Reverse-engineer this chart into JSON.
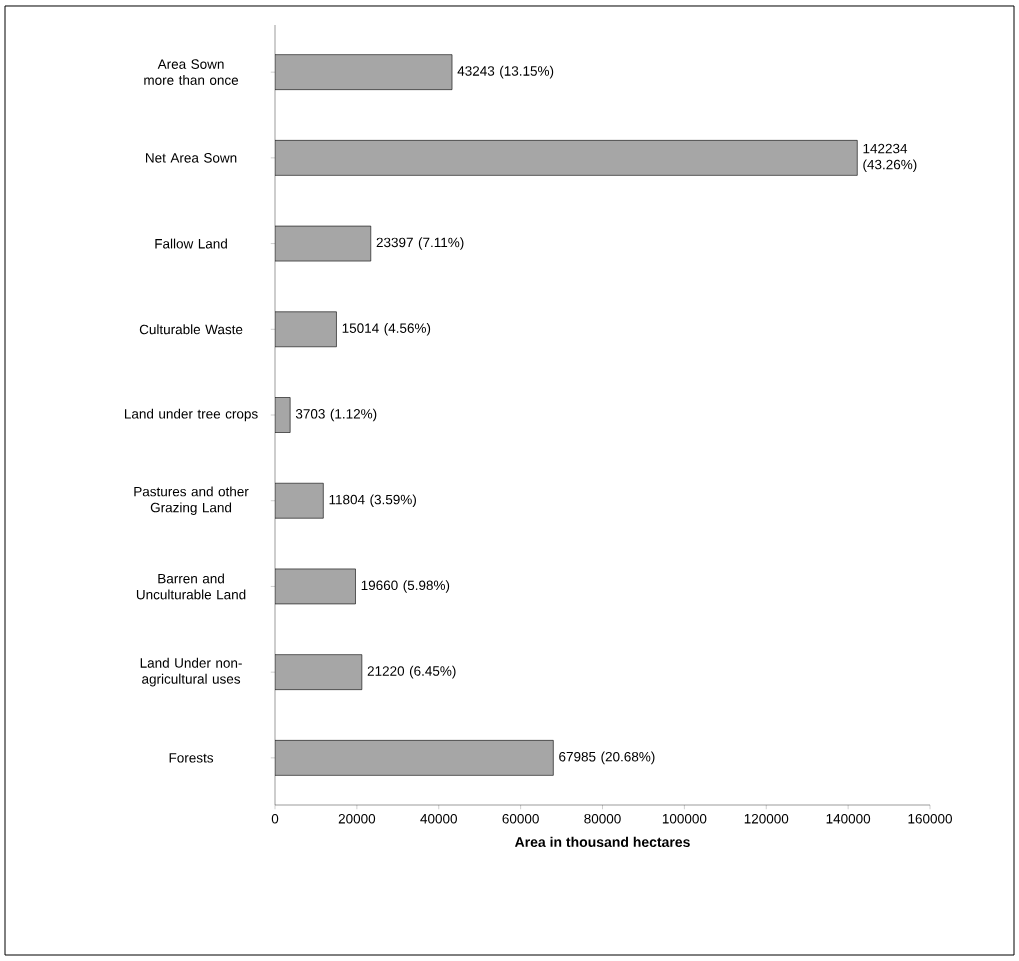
{
  "chart_data": {
    "type": "bar",
    "orientation": "horizontal",
    "xlabel": "**Area in thousand hectares**",
    "categories": [
      "Area Sown more than once",
      "Net Area Sown",
      "Fallow Land",
      "Culturable Waste",
      "Land under tree crops",
      "Pastures and other Grazing Land",
      "Barren and Unculturable Land",
      "Land Under non-agricultural uses",
      "Forests"
    ],
    "values": [
      43243,
      142234,
      23397,
      15014,
      3703,
      11804,
      19660,
      21220,
      67985
    ],
    "value_labels": [
      "43243 (13.15%)",
      "142234 (43.26%)",
      "23397 (7.11%)",
      "15014 (4.56%)",
      "3703 (1.12%)",
      "11804 (3.59%)",
      "19660 (5.98%)",
      "21220 (6.45%)",
      "67985 (20.68%)"
    ],
    "color": "#a6a6a6",
    "xlim": [
      0,
      160000
    ],
    "xticks": [
      0,
      20000,
      40000,
      60000,
      80000,
      100000,
      120000,
      140000,
      160000
    ],
    "grid": false
  }
}
